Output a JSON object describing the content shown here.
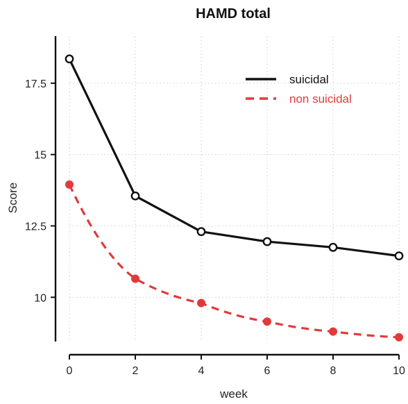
{
  "chart_data": {
    "type": "line",
    "title": "HAMD total",
    "xlabel": "week",
    "ylabel": "Score",
    "x": [
      0,
      2,
      4,
      6,
      8,
      10
    ],
    "xticks": [
      "0",
      "2",
      "4",
      "6",
      "8",
      "10"
    ],
    "yticks": [
      "10",
      "12.5",
      "15",
      "17.5"
    ],
    "xlim": [
      0,
      10
    ],
    "ylim": [
      8.45,
      19.15
    ],
    "grid": true,
    "legend_position": "top-right",
    "series": [
      {
        "name": "suicidal",
        "values": [
          18.35,
          13.55,
          12.3,
          11.95,
          11.75,
          11.45
        ],
        "color": "#111111",
        "line_style": "solid",
        "marker": "open-circle"
      },
      {
        "name": "non suicidal",
        "values": [
          13.95,
          10.65,
          9.8,
          9.15,
          8.8,
          8.6
        ],
        "color": "#e03a3a",
        "line_style": "dashed",
        "marker": "filled-circle"
      }
    ]
  }
}
